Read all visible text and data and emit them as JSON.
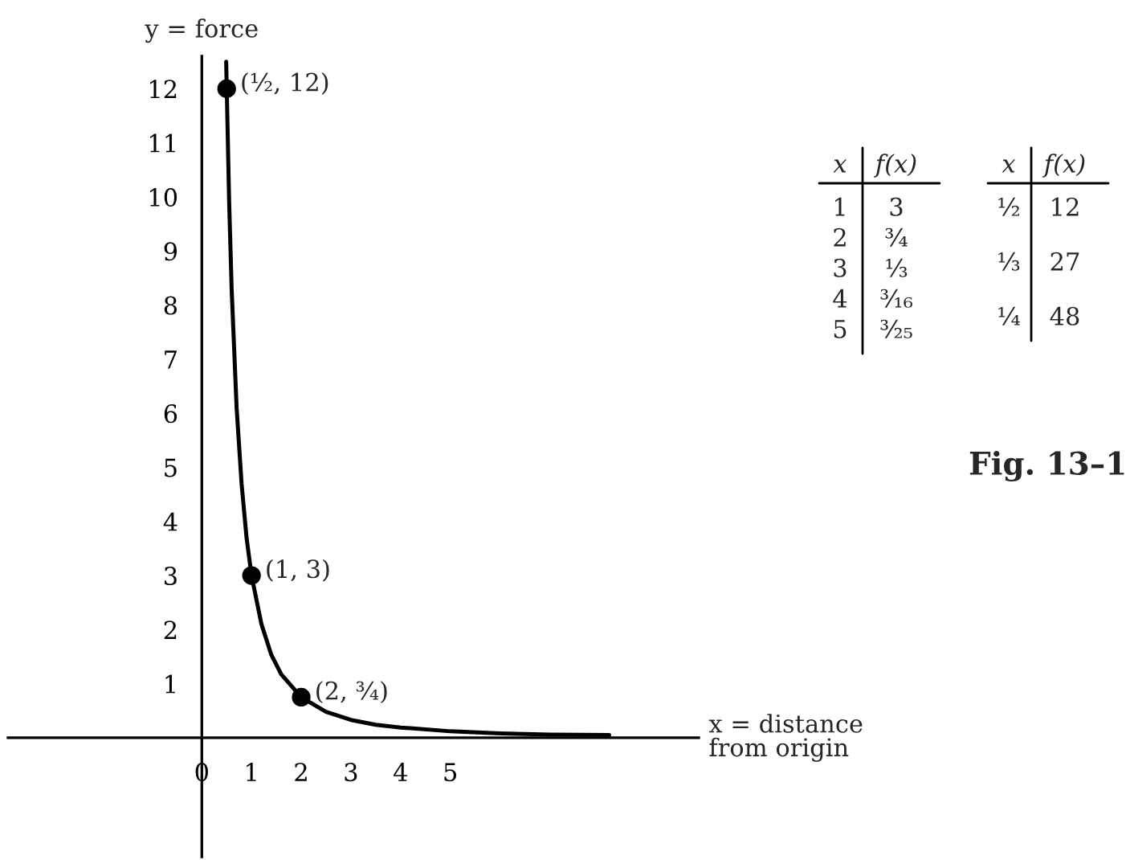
{
  "chart_data": {
    "type": "line",
    "ylabel": "y = force",
    "xlabel": "x = distance\nfrom origin",
    "xlim": [
      -3.9,
      10
    ],
    "ylim": [
      -2.2,
      12.6
    ],
    "xticks": [
      {
        "value": 0,
        "label": "0"
      },
      1,
      2,
      3,
      4,
      5
    ],
    "yticks": [
      1,
      2,
      3,
      4,
      5,
      6,
      7,
      8,
      9,
      10,
      11,
      12
    ],
    "grid": false,
    "marker": "circle",
    "series": [
      {
        "marker": "none",
        "color": "#000000",
        "x": [
          0.49,
          0.55,
          0.6,
          0.7,
          0.8,
          0.9,
          1,
          1.2,
          1.4,
          1.6,
          2,
          2.5,
          3,
          3.5,
          4,
          5,
          6,
          7,
          8.2
        ],
        "values": [
          12.5,
          9.9,
          8.3,
          6.1,
          4.7,
          3.7,
          3,
          2.1,
          1.53,
          1.17,
          0.75,
          0.48,
          0.33,
          0.24,
          0.19,
          0.12,
          0.08,
          0.06,
          0.05
        ]
      },
      {
        "type": "scatter",
        "color": "#000000",
        "x": [
          0.5,
          1,
          2
        ],
        "values": [
          12,
          3,
          0.75
        ]
      }
    ],
    "annotations": [
      {
        "text": "(½, 12)",
        "x": 0.5,
        "y": 12
      },
      {
        "text": "(1, 3)",
        "x": 1,
        "y": 3
      },
      {
        "text": "(2, ¾)",
        "x": 2,
        "y": 0.75
      },
      "Fig. 13–1",
      "x",
      "f(x)",
      "1",
      "3",
      "2",
      "¾",
      "3",
      "⅓",
      "4",
      "³⁄₁₆",
      "5",
      "³⁄₂₅",
      "x",
      "f(x)",
      "½",
      "12",
      "⅓",
      "27",
      "¼",
      "48"
    ]
  }
}
